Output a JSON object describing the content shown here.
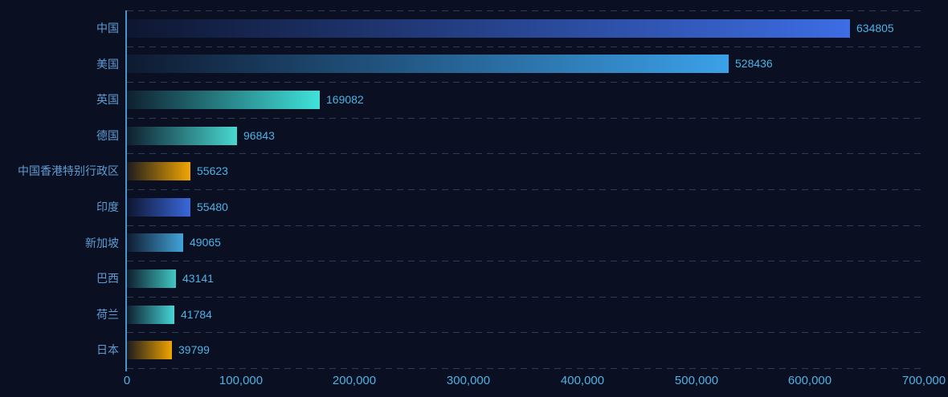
{
  "chart_data": {
    "type": "bar",
    "orientation": "horizontal",
    "title": "",
    "xlabel": "",
    "ylabel": "",
    "legend": "none",
    "grid": "dashed horizontal category split lines",
    "categories": [
      "中国",
      "美国",
      "英国",
      "德国",
      "中国香港特别行政区",
      "印度",
      "新加坡",
      "巴西",
      "荷兰",
      "日本"
    ],
    "values": [
      634805,
      528436,
      169082,
      96843,
      55623,
      55480,
      49065,
      43141,
      41784,
      39799
    ],
    "value_labels": [
      "634805",
      "528436",
      "169082",
      "96843",
      "55623",
      "55480",
      "49065",
      "43141",
      "41784",
      "39799"
    ],
    "bar_end_colors": [
      "#3d6de4",
      "#3ba1e8",
      "#40e2da",
      "#48d8d0",
      "#f2a602",
      "#3a68dc",
      "#42a4d8",
      "#40c8c4",
      "#45d6d6",
      "#f0a400"
    ],
    "bar_gradient": "dark transparent at base to solid color at bar end",
    "xlim": [
      0,
      700000
    ],
    "x_ticks": [
      "0",
      "100,000",
      "200,000",
      "300,000",
      "400,000",
      "500,000",
      "600,000",
      "700,000"
    ]
  },
  "colors": {
    "background": "#0a0f21",
    "axis_line": "#4e94c8",
    "split_line": "#2e3c55",
    "category_label": "#5e9cd2",
    "value_label": "#4fb2e4",
    "tick_label": "#4fb2e4"
  }
}
